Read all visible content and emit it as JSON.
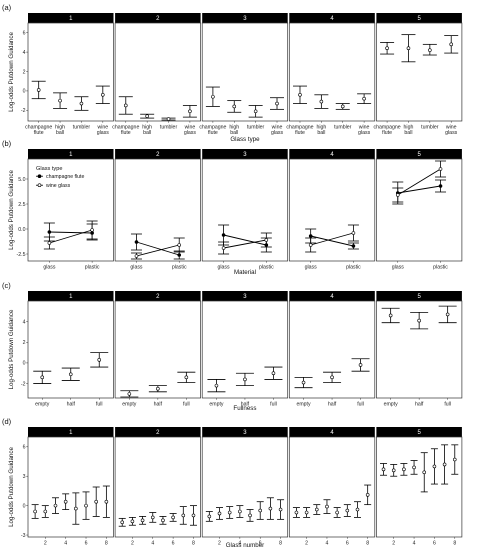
{
  "chart_data": [
    {
      "tag": "(a)",
      "type": "scatter",
      "facets": [
        "1",
        "2",
        "3",
        "4",
        "5"
      ],
      "categories": [
        "champagne flute",
        "high ball",
        "tumbler",
        "wine glass"
      ],
      "xlabel": "Glass type",
      "ylabel": "Log-odds Putdown Guidance",
      "ylim": [
        -3.1,
        7.0
      ],
      "yticks": [
        -2,
        0,
        2,
        4,
        6
      ],
      "panels": [
        {
          "values": [
            0.1,
            -1.0,
            -1.3,
            -0.4
          ],
          "lo": [
            -0.8,
            -1.8,
            -2.0,
            -1.3
          ],
          "hi": [
            1.0,
            -0.2,
            -0.6,
            0.5
          ]
        },
        {
          "values": [
            -1.5,
            -2.6,
            -2.9,
            -2.1
          ],
          "lo": [
            -2.4,
            -2.8,
            -3.0,
            -2.7
          ],
          "hi": [
            -0.6,
            -2.4,
            -2.8,
            -1.5
          ]
        },
        {
          "values": [
            -0.6,
            -1.6,
            -2.1,
            -1.3
          ],
          "lo": [
            -1.6,
            -2.2,
            -2.7,
            -1.9
          ],
          "hi": [
            0.4,
            -1.0,
            -1.5,
            -0.7
          ]
        },
        {
          "values": [
            -0.4,
            -1.1,
            -1.6,
            -0.8
          ],
          "lo": [
            -1.3,
            -1.8,
            -1.9,
            -1.3
          ],
          "hi": [
            0.5,
            -0.4,
            -1.3,
            -0.3
          ]
        },
        {
          "values": [
            4.4,
            4.4,
            4.2,
            4.8
          ],
          "lo": [
            3.8,
            3.0,
            3.7,
            3.9
          ],
          "hi": [
            5.0,
            5.8,
            4.8,
            5.7
          ]
        }
      ]
    },
    {
      "tag": "(b)",
      "type": "line",
      "facets": [
        "1",
        "2",
        "3",
        "4",
        "5"
      ],
      "categories": [
        "glass",
        "plastic"
      ],
      "xlabel": "Material",
      "ylabel": "Log-odds Putdown Guidance",
      "ylim": [
        -3.2,
        7.0
      ],
      "yticks": [
        -2.5,
        0.0,
        2.5,
        5.0
      ],
      "ytick_labels": [
        "-2.5",
        "0.0",
        "2.5",
        "5.0"
      ],
      "legend": {
        "title": "Glass type",
        "placement": "top-left"
      },
      "series": [
        {
          "name": "champagne flute",
          "marker": "filled",
          "panels": [
            {
              "values": [
                -0.3,
                -0.4
              ],
              "lo": [
                -1.2,
                -1.1
              ],
              "hi": [
                0.6,
                0.5
              ]
            },
            {
              "values": [
                -1.3,
                -2.6
              ],
              "lo": [
                -2.1,
                -3.0
              ],
              "hi": [
                -0.5,
                -2.2
              ]
            },
            {
              "values": [
                -0.6,
                -1.6
              ],
              "lo": [
                -1.6,
                -2.3
              ],
              "hi": [
                0.4,
                -0.9
              ]
            },
            {
              "values": [
                -0.7,
                -1.7
              ],
              "lo": [
                -1.4,
                -2.0
              ],
              "hi": [
                0.0,
                -1.4
              ]
            },
            {
              "values": [
                3.6,
                4.3
              ],
              "lo": [
                2.5,
                3.7
              ],
              "hi": [
                4.7,
                4.9
              ]
            }
          ]
        },
        {
          "name": "wine glass",
          "marker": "open",
          "panels": [
            {
              "values": [
                -1.4,
                -0.1
              ],
              "lo": [
                -2.0,
                -1.0
              ],
              "hi": [
                -0.8,
                0.8
              ]
            },
            {
              "values": [
                -2.7,
                -1.6
              ],
              "lo": [
                -3.0,
                -2.3
              ],
              "hi": [
                -2.4,
                -0.9
              ]
            },
            {
              "values": [
                -1.9,
                -1.1
              ],
              "lo": [
                -2.5,
                -1.8
              ],
              "hi": [
                -1.3,
                -0.4
              ]
            },
            {
              "values": [
                -1.6,
                -0.4
              ],
              "lo": [
                -2.3,
                -1.2
              ],
              "hi": [
                -0.9,
                0.4
              ]
            },
            {
              "values": [
                3.4,
                6.0
              ],
              "lo": [
                2.7,
                5.2
              ],
              "hi": [
                4.1,
                6.8
              ]
            }
          ]
        }
      ]
    },
    {
      "tag": "(c)",
      "type": "scatter",
      "facets": [
        "1",
        "2",
        "3",
        "4",
        "5"
      ],
      "categories": [
        "empty",
        "half",
        "full"
      ],
      "xlabel": "Fullness",
      "ylabel": "Log-odds Putdown Guidance",
      "ylim": [
        -3.4,
        6.0
      ],
      "yticks": [
        -2,
        0,
        2,
        4
      ],
      "panels": [
        {
          "values": [
            -1.4,
            -1.1,
            0.3
          ],
          "lo": [
            -2.0,
            -1.7,
            -0.4
          ],
          "hi": [
            -0.8,
            -0.5,
            1.0
          ]
        },
        {
          "values": [
            -3.0,
            -2.5,
            -1.4
          ],
          "lo": [
            -3.3,
            -2.8,
            -1.9
          ],
          "hi": [
            -2.7,
            -2.2,
            -0.9
          ]
        },
        {
          "values": [
            -2.2,
            -1.6,
            -1.0
          ],
          "lo": [
            -2.8,
            -2.2,
            -1.6
          ],
          "hi": [
            -1.6,
            -1.0,
            -0.4
          ]
        },
        {
          "values": [
            -1.9,
            -1.4,
            -0.2
          ],
          "lo": [
            -2.4,
            -1.9,
            -0.8
          ],
          "hi": [
            -1.4,
            -0.9,
            0.4
          ]
        },
        {
          "values": [
            4.6,
            4.1,
            4.7
          ],
          "lo": [
            3.9,
            3.3,
            3.9
          ],
          "hi": [
            5.3,
            4.9,
            5.5
          ]
        }
      ]
    },
    {
      "tag": "(d)",
      "type": "scatter",
      "facets": [
        "1",
        "2",
        "3",
        "4",
        "5"
      ],
      "x": [
        1,
        2,
        3,
        4,
        5,
        6,
        7,
        8
      ],
      "xticks": [
        2,
        4,
        6,
        8
      ],
      "xlabel": "Glass number",
      "ylabel": "Log-odds Putdown Guidance",
      "ylim": [
        -3.2,
        7.0
      ],
      "yticks": [
        -3,
        0,
        3,
        6
      ],
      "panels": [
        {
          "values": [
            -0.6,
            -0.6,
            0.0,
            0.4,
            -0.3,
            0.0,
            0.4,
            0.4
          ],
          "lo": [
            -1.3,
            -1.2,
            -0.8,
            -0.4,
            -1.9,
            -1.4,
            -1.1,
            -1.2
          ],
          "hi": [
            0.1,
            0.0,
            0.8,
            1.2,
            1.3,
            1.4,
            1.9,
            2.0
          ]
        },
        {
          "values": [
            -1.7,
            -1.6,
            -1.5,
            -1.2,
            -1.5,
            -1.2,
            -1.0,
            -1.0
          ],
          "lo": [
            -2.1,
            -2.0,
            -1.9,
            -1.7,
            -1.9,
            -1.6,
            -1.9,
            -2.0
          ],
          "hi": [
            -1.3,
            -1.2,
            -1.1,
            -0.7,
            -1.1,
            -0.8,
            -0.1,
            0.0
          ]
        },
        {
          "values": [
            -1.1,
            -0.8,
            -0.7,
            -0.6,
            -1.0,
            -0.5,
            -0.3,
            -0.4
          ],
          "lo": [
            -1.6,
            -1.4,
            -1.3,
            -1.2,
            -1.6,
            -1.4,
            -1.4,
            -1.4
          ],
          "hi": [
            -0.6,
            -0.2,
            -0.1,
            0.0,
            -0.4,
            0.4,
            0.8,
            0.6
          ]
        },
        {
          "values": [
            -0.7,
            -0.7,
            -0.4,
            -0.1,
            -0.7,
            -0.5,
            -0.4,
            1.1
          ],
          "lo": [
            -1.2,
            -1.2,
            -0.9,
            -0.8,
            -1.2,
            -1.1,
            -1.2,
            0.1
          ],
          "hi": [
            -0.2,
            -0.2,
            0.1,
            0.6,
            -0.2,
            0.1,
            0.4,
            2.1
          ]
        },
        {
          "values": [
            3.7,
            3.6,
            3.7,
            3.9,
            3.4,
            4.0,
            4.2,
            4.7
          ],
          "lo": [
            3.1,
            3.0,
            3.1,
            3.2,
            1.4,
            2.2,
            2.2,
            3.2
          ],
          "hi": [
            4.3,
            4.2,
            4.3,
            4.6,
            5.4,
            5.8,
            6.2,
            6.2
          ]
        }
      ]
    }
  ]
}
